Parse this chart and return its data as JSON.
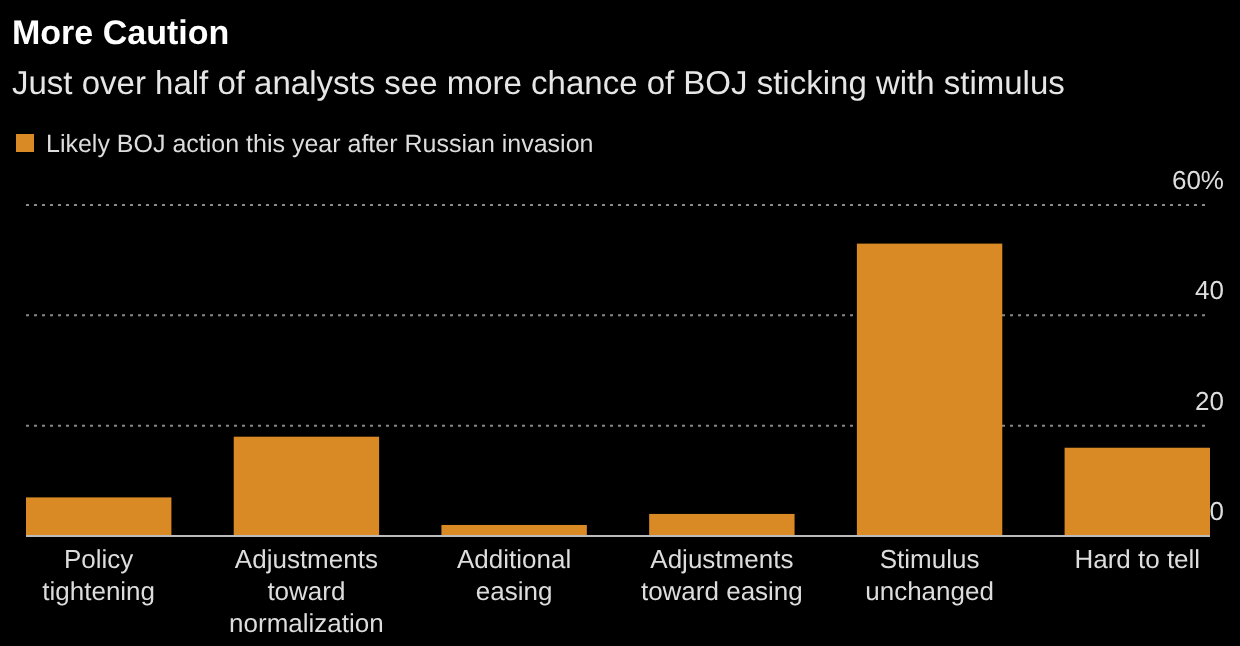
{
  "chart_data": {
    "type": "bar",
    "title": "More Caution",
    "subtitle": "Just over half of analysts see more chance of BOJ sticking with stimulus",
    "categories": [
      "Policy tightening",
      "Adjustments toward normalization",
      "Additional easing",
      "Adjustments toward easing",
      "Stimulus unchanged",
      "Hard to tell"
    ],
    "series": [
      {
        "name": "Likely BOJ action this year after Russian invasion",
        "color": "#d98a25",
        "values": [
          7,
          18,
          2,
          4,
          53,
          16
        ]
      }
    ],
    "ylim": [
      0,
      60
    ],
    "yticks": [
      0,
      20,
      40,
      {
        "value": 60,
        "label": "60%"
      }
    ],
    "grid": "y",
    "legend": "top left"
  }
}
